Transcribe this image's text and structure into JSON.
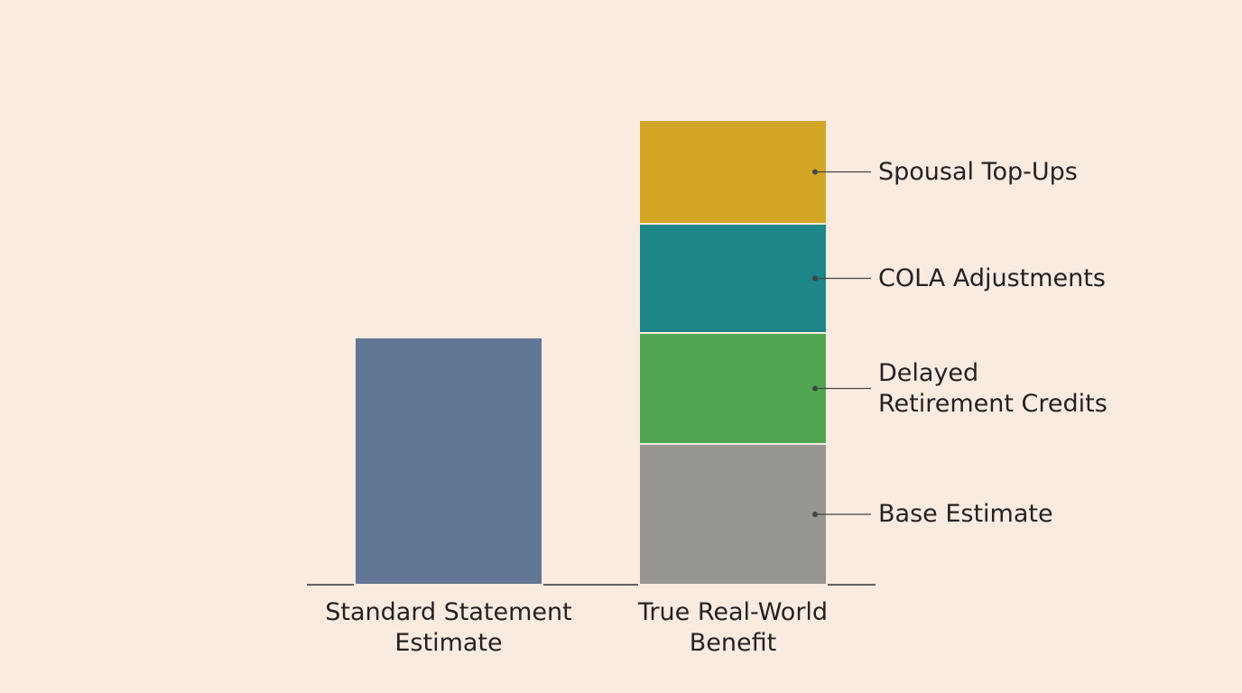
{
  "chart_data": {
    "type": "stacked-bar",
    "categories": [
      "Standard Statement Estimate",
      "True Real-World Benefit"
    ],
    "series": [
      {
        "color": "#627795",
        "values": [
          274,
          null
        ]
      },
      {
        "name": "Base Estimate",
        "color": "#989690",
        "values": [
          null,
          156
        ]
      },
      {
        "name": "Delayed Retirement Credits",
        "color": "#52a651",
        "values": [
          null,
          123
        ]
      },
      {
        "name": "COLA Adjustments",
        "color": "#1e8589",
        "values": [
          null,
          121
        ]
      },
      {
        "name": "Spousal Top-Ups",
        "color": "#d4a626",
        "values": [
          null,
          115
        ]
      }
    ],
    "ylim": [
      0,
      515
    ]
  }
}
